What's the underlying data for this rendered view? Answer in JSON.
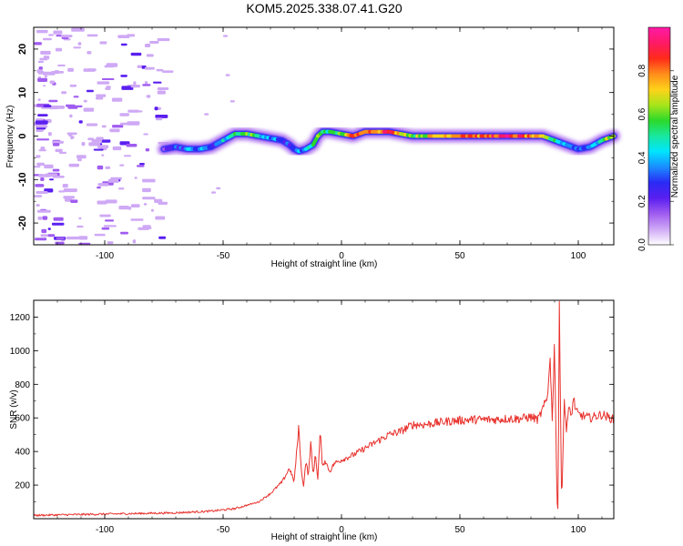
{
  "title": "KOM5.2025.338.07.41.G20",
  "chart_data": [
    {
      "type": "heatmap",
      "description": "spectrogram",
      "xlabel": "Height of straight line (km)",
      "ylabel": "Frequency (Hz)",
      "xlim": [
        -130,
        115
      ],
      "ylim": [
        -25,
        25
      ],
      "xticks": [
        -100,
        -50,
        0,
        50,
        100
      ],
      "yticks": [
        -20,
        -10,
        0,
        10,
        20
      ],
      "colorbar": {
        "label": "Normalized spectral amplitude",
        "range": [
          0,
          1
        ],
        "ticks": [
          "0.0",
          "0.2",
          "0.4",
          "0.6",
          "0.8"
        ],
        "colors": [
          "#ffffff",
          "#cfa9f5",
          "#a05cf0",
          "#5a1ff0",
          "#2a2af5",
          "#1a8cff",
          "#00e5ff",
          "#19e8a0",
          "#2bd92b",
          "#a8e51a",
          "#ffd21a",
          "#ff8c1a",
          "#ff2a1a",
          "#ff1a66",
          "#ff1aa8"
        ]
      },
      "ridge": {
        "x": [
          -75,
          -70,
          -65,
          -60,
          -55,
          -50,
          -45,
          -40,
          -35,
          -30,
          -25,
          -22,
          -20,
          -18,
          -15,
          -12,
          -10,
          -8,
          -5,
          0,
          5,
          10,
          15,
          20,
          25,
          30,
          40,
          50,
          60,
          70,
          80,
          85,
          90,
          95,
          100,
          105,
          110,
          115
        ],
        "freq": [
          -3,
          -2.5,
          -3,
          -3,
          -2.5,
          -1,
          0.5,
          0.5,
          0,
          -0.5,
          -1,
          -2,
          -3,
          -3.5,
          -3,
          -2,
          0,
          1,
          1,
          0.5,
          0,
          1,
          1,
          1,
          0.5,
          0,
          0,
          0,
          0,
          0,
          0,
          0,
          -1,
          -2,
          -3,
          -2.5,
          -1,
          0
        ],
        "amplitude": [
          0.25,
          0.3,
          0.35,
          0.35,
          0.3,
          0.4,
          0.55,
          0.6,
          0.5,
          0.35,
          0.3,
          0.3,
          0.25,
          0.3,
          0.4,
          0.5,
          0.55,
          0.6,
          0.5,
          0.6,
          0.8,
          0.85,
          0.8,
          0.9,
          0.75,
          0.6,
          0.7,
          0.85,
          0.8,
          0.9,
          0.8,
          0.65,
          0.5,
          0.4,
          0.3,
          0.35,
          0.5,
          0.7
        ]
      }
    },
    {
      "type": "line",
      "xlabel": "Height of straight line (km)",
      "ylabel": "SNR (v/v)",
      "xlim": [
        -130,
        115
      ],
      "ylim": [
        0,
        1300
      ],
      "xticks": [
        -100,
        -50,
        0,
        50,
        100
      ],
      "yticks": [
        200,
        400,
        600,
        800,
        1000,
        1200
      ],
      "series": [
        {
          "name": "SNR",
          "color": "#e8322d",
          "x": [
            -130,
            -110,
            -90,
            -70,
            -55,
            -45,
            -35,
            -30,
            -25,
            -22,
            -20,
            -18,
            -17,
            -16,
            -15,
            -14,
            -13,
            -12,
            -11,
            -10,
            -9,
            -8,
            -7,
            -5,
            -3,
            0,
            5,
            10,
            15,
            20,
            25,
            30,
            35,
            40,
            45,
            50,
            55,
            60,
            65,
            70,
            75,
            80,
            83,
            85,
            87,
            88,
            89,
            90,
            91,
            91.5,
            92,
            93,
            94,
            95,
            96,
            97,
            98,
            99,
            100,
            105,
            110,
            115
          ],
          "y": [
            20,
            25,
            30,
            35,
            45,
            60,
            100,
            150,
            220,
            300,
            220,
            550,
            280,
            200,
            350,
            250,
            450,
            260,
            380,
            240,
            520,
            300,
            350,
            280,
            330,
            350,
            380,
            420,
            460,
            500,
            520,
            560,
            560,
            570,
            580,
            585,
            590,
            590,
            590,
            595,
            595,
            605,
            590,
            650,
            720,
            980,
            600,
            1060,
            100,
            50,
            1290,
            60,
            700,
            540,
            660,
            600,
            720,
            640,
            620,
            600,
            620,
            590
          ]
        }
      ]
    }
  ]
}
